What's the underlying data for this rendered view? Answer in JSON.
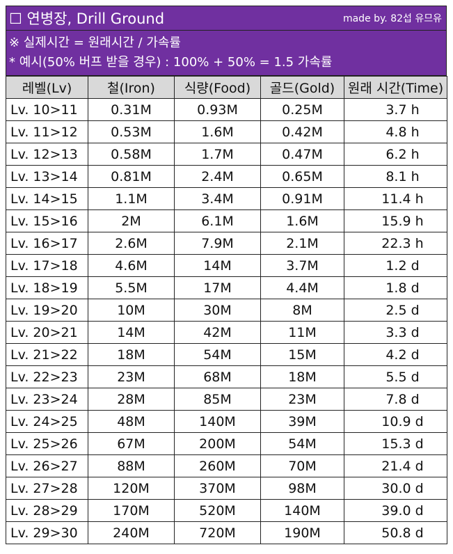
{
  "header": {
    "title": "☐ 연병장, Drill Ground",
    "credit": "made by. 82섭 유므유"
  },
  "notes": {
    "line1": "※ 실제시간 = 원래시간 / 가속률",
    "line2": "* 예시(50% 버프 받을 경우) : 100% + 50% = 1.5 가속률"
  },
  "columns": [
    "레벨(Lv)",
    "철(Iron)",
    "식량(Food)",
    "골드(Gold)",
    "원래 시간(Time)"
  ],
  "rows": [
    [
      "Lv. 10>11",
      "0.31M",
      "0.93M",
      "0.25M",
      "3.7 h"
    ],
    [
      "Lv. 11>12",
      "0.53M",
      "1.6M",
      "0.42M",
      "4.8 h"
    ],
    [
      "Lv. 12>13",
      "0.58M",
      "1.7M",
      "0.47M",
      "6.2 h"
    ],
    [
      "Lv. 13>14",
      "0.81M",
      "2.4M",
      "0.65M",
      "8.1 h"
    ],
    [
      "Lv. 14>15",
      "1.1M",
      "3.4M",
      "0.91M",
      "11.4 h"
    ],
    [
      "Lv. 15>16",
      "2M",
      "6.1M",
      "1.6M",
      "15.9 h"
    ],
    [
      "Lv. 16>17",
      "2.6M",
      "7.9M",
      "2.1M",
      "22.3 h"
    ],
    [
      "Lv. 17>18",
      "4.6M",
      "14M",
      "3.7M",
      "1.2 d"
    ],
    [
      "Lv. 18>19",
      "5.5M",
      "17M",
      "4.4M",
      "1.8 d"
    ],
    [
      "Lv. 19>20",
      "10M",
      "30M",
      "8M",
      "2.5 d"
    ],
    [
      "Lv. 20>21",
      "14M",
      "42M",
      "11M",
      "3.3 d"
    ],
    [
      "Lv. 21>22",
      "18M",
      "54M",
      "15M",
      "4.2 d"
    ],
    [
      "Lv. 22>23",
      "23M",
      "68M",
      "18M",
      "5.5 d"
    ],
    [
      "Lv. 23>24",
      "28M",
      "85M",
      "23M",
      "7.8 d"
    ],
    [
      "Lv. 24>25",
      "48M",
      "140M",
      "39M",
      "10.9 d"
    ],
    [
      "Lv. 25>26",
      "67M",
      "200M",
      "54M",
      "15.3 d"
    ],
    [
      "Lv. 26>27",
      "88M",
      "260M",
      "70M",
      "21.4 d"
    ],
    [
      "Lv. 27>28",
      "120M",
      "370M",
      "98M",
      "30.0 d"
    ],
    [
      "Lv. 28>29",
      "170M",
      "520M",
      "140M",
      "39.0 d"
    ],
    [
      "Lv. 29>30",
      "240M",
      "720M",
      "190M",
      "50.8 d"
    ]
  ]
}
